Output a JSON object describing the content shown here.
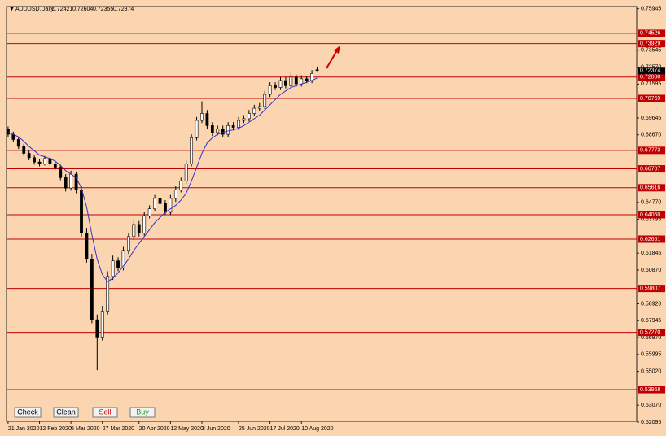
{
  "chart_data": {
    "type": "candlestick",
    "title": "AUDUSD,Daily",
    "buttons": [
      "Check",
      "Clean",
      "Sell",
      "Buy"
    ],
    "open": [
      0.69,
      0.687,
      0.684,
      0.68,
      0.676,
      0.6735,
      0.671,
      0.67,
      0.673,
      0.67,
      0.668,
      0.662,
      0.656,
      0.664,
      0.655,
      0.63,
      0.615,
      0.58,
      0.57,
      0.585,
      0.605,
      0.614,
      0.61,
      0.62,
      0.628,
      0.635,
      0.63,
      0.64,
      0.644,
      0.65,
      0.647,
      0.642,
      0.65,
      0.655,
      0.66,
      0.67,
      0.685,
      0.695,
      0.699,
      0.692,
      0.688,
      0.69,
      0.687,
      0.692,
      0.691,
      0.695,
      0.696,
      0.699,
      0.702,
      0.703,
      0.71,
      0.715,
      0.714,
      0.718,
      0.715,
      0.72,
      0.716,
      0.719,
      0.718,
      0.72421
    ],
    "high": [
      0.6915,
      0.6885,
      0.6855,
      0.6815,
      0.678,
      0.675,
      0.6725,
      0.6745,
      0.6745,
      0.6715,
      0.6695,
      0.664,
      0.666,
      0.6655,
      0.657,
      0.633,
      0.618,
      0.583,
      0.588,
      0.608,
      0.617,
      0.616,
      0.622,
      0.63,
      0.637,
      0.637,
      0.642,
      0.646,
      0.652,
      0.652,
      0.649,
      0.652,
      0.657,
      0.662,
      0.672,
      0.687,
      0.697,
      0.706,
      0.701,
      0.694,
      0.692,
      0.692,
      0.694,
      0.694,
      0.697,
      0.698,
      0.701,
      0.704,
      0.705,
      0.712,
      0.717,
      0.717,
      0.72,
      0.72,
      0.7225,
      0.7215,
      0.721,
      0.7205,
      0.724,
      0.72604
    ],
    "low": [
      0.6855,
      0.6825,
      0.6785,
      0.6745,
      0.672,
      0.6695,
      0.6685,
      0.669,
      0.6685,
      0.6665,
      0.6605,
      0.654,
      0.6545,
      0.653,
      0.628,
      0.613,
      0.578,
      0.5509,
      0.568,
      0.583,
      0.603,
      0.608,
      0.6085,
      0.618,
      0.626,
      0.628,
      0.6285,
      0.6385,
      0.6425,
      0.6455,
      0.6405,
      0.6405,
      0.648,
      0.6535,
      0.6585,
      0.6685,
      0.6835,
      0.6935,
      0.69,
      0.686,
      0.6865,
      0.6855,
      0.6855,
      0.6895,
      0.6895,
      0.6935,
      0.6945,
      0.6975,
      0.7005,
      0.7015,
      0.7085,
      0.7125,
      0.7125,
      0.7135,
      0.7135,
      0.7145,
      0.7145,
      0.7165,
      0.7165,
      0.72355
    ],
    "close": [
      0.687,
      0.684,
      0.68,
      0.676,
      0.6735,
      0.671,
      0.67,
      0.673,
      0.67,
      0.668,
      0.662,
      0.656,
      0.664,
      0.655,
      0.63,
      0.615,
      0.58,
      0.57,
      0.585,
      0.605,
      0.614,
      0.61,
      0.62,
      0.628,
      0.635,
      0.63,
      0.64,
      0.644,
      0.65,
      0.647,
      0.642,
      0.65,
      0.655,
      0.66,
      0.67,
      0.685,
      0.695,
      0.699,
      0.692,
      0.688,
      0.69,
      0.687,
      0.692,
      0.691,
      0.695,
      0.696,
      0.699,
      0.702,
      0.703,
      0.71,
      0.715,
      0.714,
      0.718,
      0.715,
      0.72,
      0.716,
      0.719,
      0.718,
      0.722,
      0.72374
    ],
    "ma": [
      0.688,
      0.687,
      0.6855,
      0.683,
      0.68,
      0.6775,
      0.675,
      0.674,
      0.673,
      0.6715,
      0.669,
      0.666,
      0.664,
      0.662,
      0.656,
      0.645,
      0.629,
      0.615,
      0.606,
      0.602,
      0.604,
      0.607,
      0.611,
      0.615,
      0.62,
      0.624,
      0.628,
      0.632,
      0.636,
      0.639,
      0.642,
      0.644,
      0.646,
      0.649,
      0.653,
      0.66,
      0.668,
      0.676,
      0.682,
      0.685,
      0.687,
      0.688,
      0.689,
      0.6895,
      0.6905,
      0.692,
      0.694,
      0.696,
      0.698,
      0.701,
      0.704,
      0.707,
      0.71,
      0.712,
      0.714,
      0.715,
      0.716,
      0.717,
      0.718,
      0.7195
    ],
    "ma_color": "#3333cc",
    "level_color": "#c00000",
    "levels": [
      0.74526,
      0.73929,
      {
        "value": 0.72,
        "label": "0.72000"
      },
      0.70769,
      0.67773,
      0.66707,
      0.65616,
      {
        "value": 0.6406,
        "label": "0.64060"
      },
      0.62651,
      0.59807,
      {
        "value": 0.5727,
        "label": "0.57270"
      },
      0.53968
    ],
    "xlim": [
      -0.3,
      120
    ],
    "ylim": [
      0.5214,
      0.7607
    ],
    "yticks": [
      0.75945,
      0.73545,
      {
        "value": 0.7257,
        "label": "0.72570"
      },
      0.71595,
      0.69645,
      {
        "value": 0.6867,
        "label": "0.68670"
      },
      {
        "value": 0.6477,
        "label": "0.64770"
      },
      0.63795,
      0.61845,
      {
        "value": 0.6087,
        "label": "0.60870"
      },
      {
        "value": 0.5892,
        "label": "0.58920"
      },
      0.57945,
      {
        "value": 0.5697,
        "label": "0.56970"
      },
      0.55995,
      {
        "value": 0.5502,
        "label": "0.55020"
      },
      {
        "value": 0.5307,
        "label": "0.53070"
      },
      0.52095
    ],
    "xticks": [
      {
        "value": 0,
        "label": "21 Jan 2020"
      },
      {
        "value": 6,
        "label": "12 Feb 2020"
      },
      {
        "value": 12,
        "label": "5 Mar 2020"
      },
      {
        "value": 18,
        "label": "27 Mar 2020"
      },
      {
        "value": 25,
        "label": "20 Apr 2020"
      },
      {
        "value": 31,
        "label": "12 May 2020"
      },
      {
        "value": 37,
        "label": "3 Jun 2020"
      },
      {
        "value": 44,
        "label": "25 Jun 2020"
      },
      {
        "value": 50,
        "label": "17 Jul 2020"
      },
      {
        "value": 56,
        "label": "10 Aug 2020"
      }
    ]
  }
}
